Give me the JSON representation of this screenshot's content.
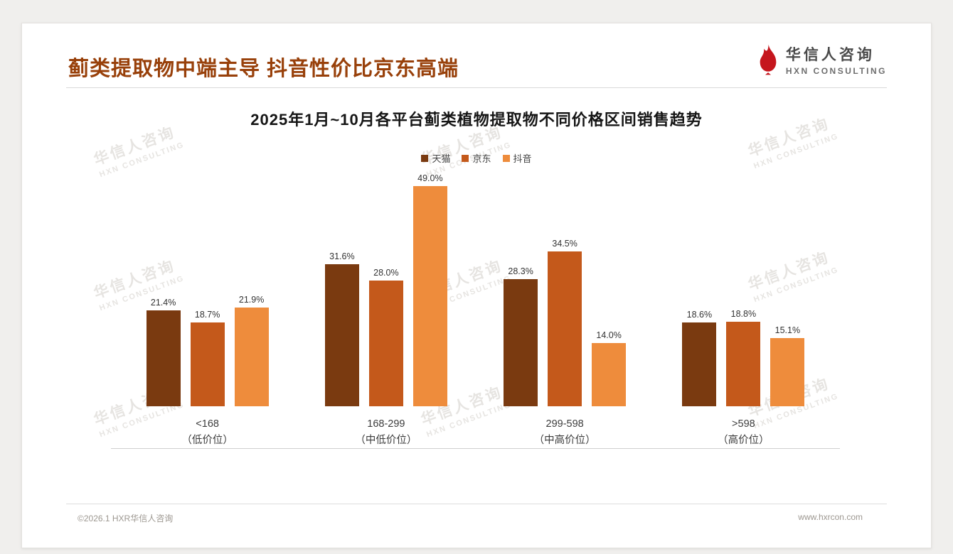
{
  "page": {
    "title": "蓟类提取物中端主导 抖音性价比京东高端",
    "footer_left": "©2026.1 HXR华信人咨询",
    "footer_right": "www.hxrcon.com"
  },
  "logo": {
    "name_cn": "华信人咨询",
    "name_en": "HXN CONSULTING",
    "icon": "flame-icon",
    "icon_color": "#c5161d"
  },
  "watermark": {
    "line1": "华信人咨询",
    "line2": "HXN CONSULTING"
  },
  "chart_data": {
    "type": "bar",
    "title": "2025年1月~10月各平台蓟类植物提取物不同价格区间销售趋势",
    "categories": [
      "<168",
      "168-299",
      "299-598",
      ">598"
    ],
    "category_sublabels": [
      "（低价位）",
      "（中低价位）",
      "（中高价位）",
      "（高价位）"
    ],
    "series": [
      {
        "name": "天猫",
        "color": "#7a3a10",
        "values": [
          21.4,
          31.6,
          28.3,
          18.6
        ]
      },
      {
        "name": "京东",
        "color": "#c4591b",
        "values": [
          18.7,
          28.0,
          34.5,
          18.8
        ]
      },
      {
        "name": "抖音",
        "color": "#ee8c3c",
        "values": [
          21.9,
          49.0,
          14.0,
          15.1
        ]
      }
    ],
    "value_suffix": "%",
    "ylim": [
      0,
      52
    ],
    "grid": false,
    "legend_position": "top",
    "data_labels": true
  }
}
